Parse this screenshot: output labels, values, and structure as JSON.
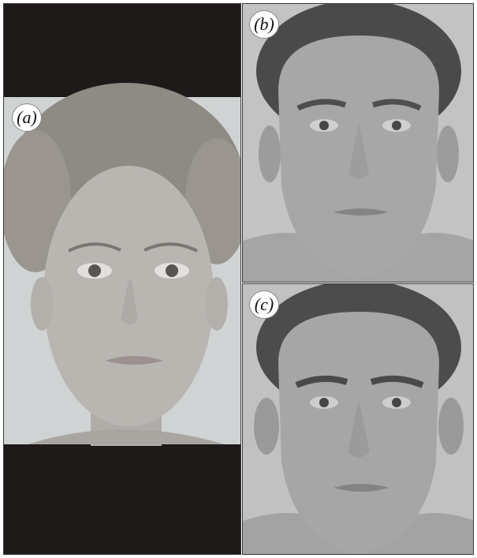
{
  "panels": [
    {
      "id": "a",
      "label": "(a)",
      "subject": "female-face-photo"
    },
    {
      "id": "b",
      "label": "(b)",
      "subject": "male-face-composite"
    },
    {
      "id": "c",
      "label": "(c)",
      "subject": "male-face-composite"
    }
  ],
  "colors": {
    "bar": "#1e1a1a",
    "bg_a": "#d0d3d4",
    "skin_a": "#b9b6b2",
    "hair_a": "#8e8a84",
    "bg_bc": "#c3c3c3",
    "skin_bc": "#a7a7a7",
    "hair_bc": "#4a4a4a"
  }
}
